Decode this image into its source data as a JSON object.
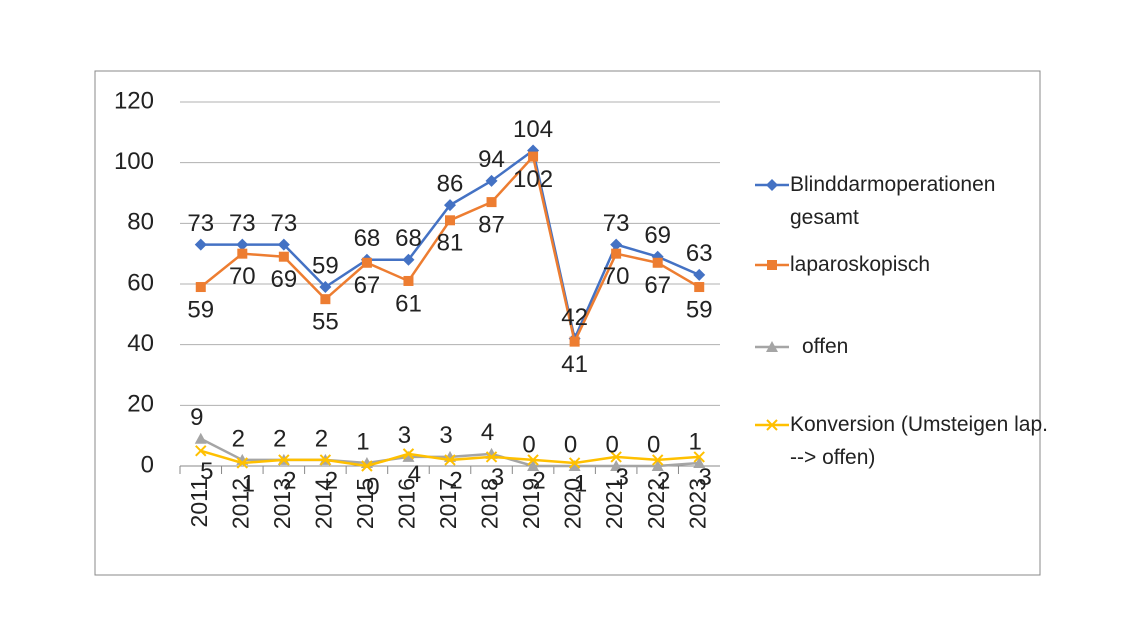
{
  "chart_data": {
    "type": "line",
    "categories": [
      "2011",
      "2012",
      "2013",
      "2014",
      "2015",
      "2016",
      "2017",
      "2018",
      "2019",
      "2020",
      "2021",
      "2022",
      "2023"
    ],
    "series": [
      {
        "name": "Blinddarmoperationen gesamt",
        "color": "#4472c4",
        "marker": "diamond",
        "values": [
          73,
          73,
          73,
          59,
          68,
          68,
          86,
          94,
          104,
          42,
          73,
          69,
          63
        ]
      },
      {
        "name": "laparoskopisch",
        "color": "#ed7d31",
        "marker": "square",
        "values": [
          59,
          70,
          69,
          55,
          67,
          61,
          81,
          87,
          102,
          41,
          70,
          67,
          59
        ]
      },
      {
        "name": "offen",
        "color": "#a5a5a5",
        "marker": "triangle",
        "values": [
          9,
          2,
          2,
          2,
          1,
          3,
          3,
          4,
          0,
          0,
          0,
          0,
          1
        ]
      },
      {
        "name": "Konversion (Umsteigen lap. --> offen)",
        "color": "#ffc000",
        "marker": "x",
        "values": [
          5,
          1,
          2,
          2,
          0,
          4,
          2,
          3,
          2,
          1,
          3,
          2,
          3
        ]
      }
    ],
    "ylim": [
      0,
      120
    ],
    "yticks": [
      0,
      20,
      40,
      60,
      80,
      100,
      120
    ],
    "grid": true,
    "legend": "right"
  }
}
